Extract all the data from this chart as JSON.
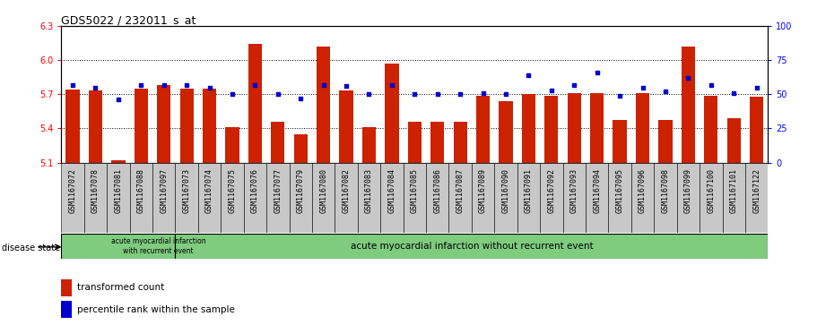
{
  "title": "GDS5022 / 232011_s_at",
  "samples": [
    "GSM1167072",
    "GSM1167078",
    "GSM1167081",
    "GSM1167088",
    "GSM1167097",
    "GSM1167073",
    "GSM1167074",
    "GSM1167075",
    "GSM1167076",
    "GSM1167077",
    "GSM1167079",
    "GSM1167080",
    "GSM1167082",
    "GSM1167083",
    "GSM1167084",
    "GSM1167085",
    "GSM1167086",
    "GSM1167087",
    "GSM1167089",
    "GSM1167090",
    "GSM1167091",
    "GSM1167092",
    "GSM1167093",
    "GSM1167094",
    "GSM1167095",
    "GSM1167096",
    "GSM1167098",
    "GSM1167099",
    "GSM1167100",
    "GSM1167101",
    "GSM1167122"
  ],
  "red_values": [
    5.74,
    5.73,
    5.12,
    5.75,
    5.78,
    5.75,
    5.75,
    5.41,
    6.14,
    5.46,
    5.35,
    6.12,
    5.73,
    5.41,
    5.97,
    5.46,
    5.46,
    5.46,
    5.69,
    5.64,
    5.7,
    5.69,
    5.71,
    5.71,
    5.47,
    5.71,
    5.47,
    6.12,
    5.69,
    5.49,
    5.68
  ],
  "blue_percentiles": [
    57,
    55,
    46,
    57,
    57,
    57,
    55,
    50,
    57,
    50,
    47,
    57,
    56,
    50,
    57,
    50,
    50,
    50,
    51,
    50,
    64,
    53,
    57,
    66,
    49,
    55,
    52,
    62,
    57,
    51,
    55
  ],
  "ylim_left": [
    5.1,
    6.3
  ],
  "ylim_right": [
    0,
    100
  ],
  "yticks_left": [
    5.1,
    5.4,
    5.7,
    6.0,
    6.3
  ],
  "yticks_right": [
    0,
    25,
    50,
    75,
    100
  ],
  "bar_color": "#CC2200",
  "dot_color": "#0000CC",
  "plot_bg_color": "#FFFFFF",
  "group1_label": "acute myocardial infarction\nwith recurrent event",
  "group2_label": "acute myocardial infarction without recurrent event",
  "group1_count": 5,
  "disease_state_label": "disease state",
  "legend_red": "transformed count",
  "legend_blue": "percentile rank within the sample",
  "group_color": "#7FCC7F",
  "xtick_bg_color": "#C8C8C8"
}
